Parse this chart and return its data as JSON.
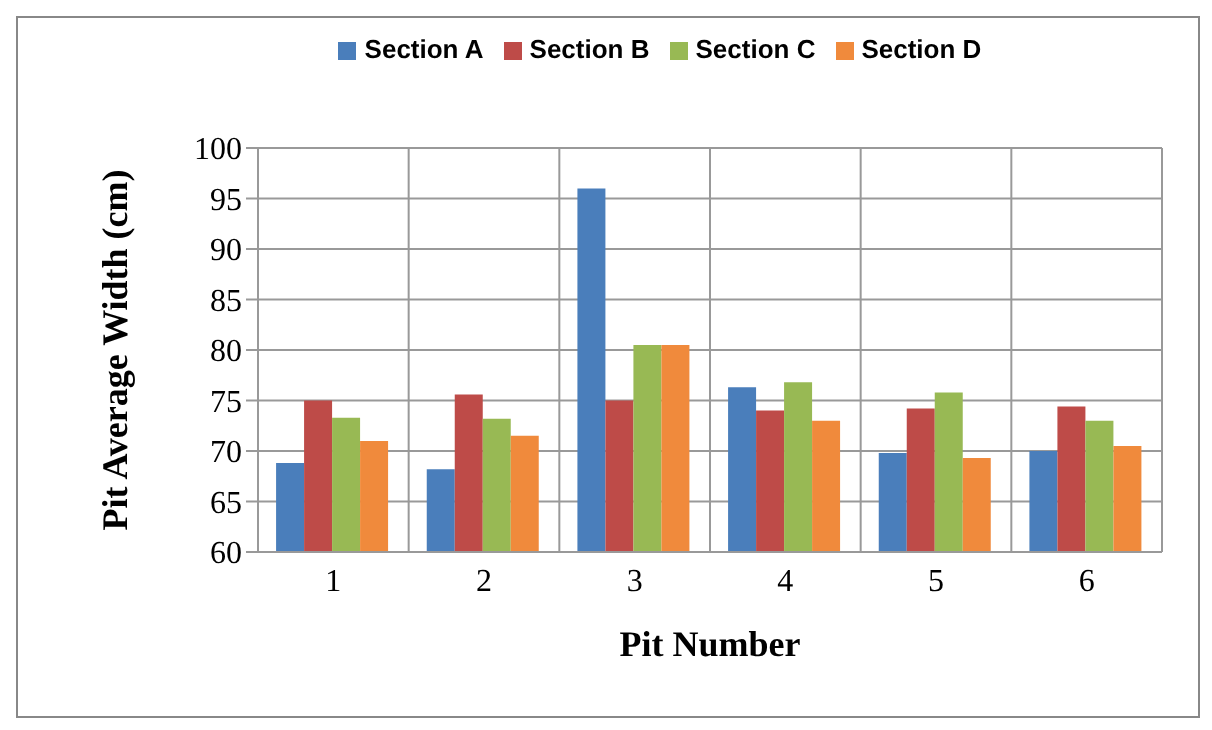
{
  "chart_data": {
    "type": "bar",
    "xlabel": "Pit Number",
    "ylabel": "Pit Average Width (cm)",
    "categories": [
      "1",
      "2",
      "3",
      "4",
      "5",
      "6"
    ],
    "series": [
      {
        "name": "Section A",
        "color": "#4a7ebb",
        "values": [
          68.8,
          68.2,
          96,
          76.3,
          69.8,
          70
        ]
      },
      {
        "name": "Section B",
        "color": "#be4b48",
        "values": [
          75,
          75.6,
          75,
          74,
          74.2,
          74.4
        ]
      },
      {
        "name": "Section C",
        "color": "#98b954",
        "values": [
          73.3,
          73.2,
          80.5,
          76.8,
          75.8,
          73
        ]
      },
      {
        "name": "Section D",
        "color": "#f08a3c",
        "values": [
          71,
          71.5,
          80.5,
          73,
          69.3,
          70.5
        ]
      }
    ],
    "ylim": [
      60,
      100
    ],
    "yticks": [
      60,
      65,
      70,
      75,
      80,
      85,
      90,
      95,
      100
    ],
    "grid": true,
    "legend": "top"
  }
}
